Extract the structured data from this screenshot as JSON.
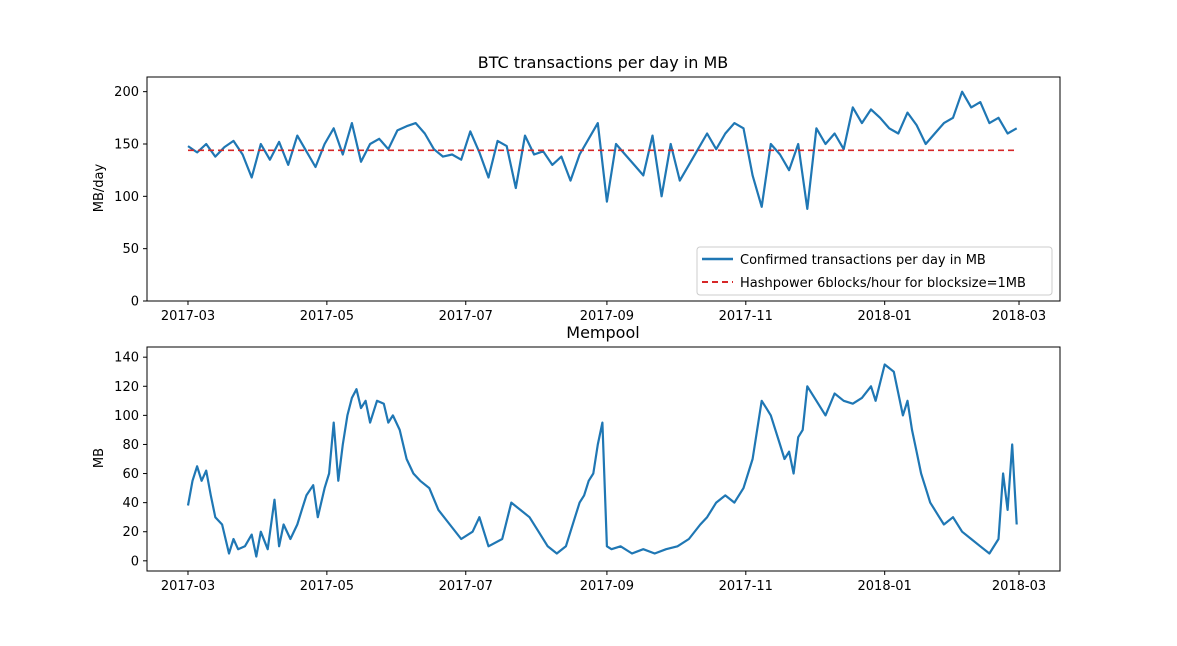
{
  "chart_data": [
    {
      "type": "line",
      "title": "BTC transactions per day in MB",
      "xlabel": "",
      "ylabel": "MB/day",
      "ylim": [
        0,
        214
      ],
      "x_ticks": [
        "2017-03",
        "2017-05",
        "2017-07",
        "2017-09",
        "2017-11",
        "2018-01",
        "2018-03"
      ],
      "x_tick_index": [
        0,
        61,
        122,
        184,
        245,
        306,
        365
      ],
      "y_ticks": [
        0,
        50,
        100,
        150,
        200
      ],
      "x_range": [
        -18,
        383
      ],
      "legend_position": "lower-right",
      "series": [
        {
          "name": "Confirmed transactions per day in MB",
          "color": "#1f77b4",
          "style": "solid",
          "x": [
            0,
            4,
            8,
            12,
            16,
            20,
            24,
            28,
            32,
            36,
            40,
            44,
            48,
            52,
            56,
            60,
            64,
            68,
            72,
            76,
            80,
            84,
            88,
            92,
            96,
            100,
            104,
            108,
            112,
            116,
            120,
            124,
            128,
            132,
            136,
            140,
            144,
            148,
            152,
            156,
            160,
            164,
            168,
            172,
            176,
            180,
            184,
            188,
            192,
            196,
            200,
            204,
            208,
            212,
            216,
            220,
            224,
            228,
            232,
            236,
            240,
            244,
            248,
            252,
            256,
            260,
            264,
            268,
            272,
            276,
            280,
            284,
            288,
            292,
            296,
            300,
            304,
            308,
            312,
            316,
            320,
            324,
            328,
            332,
            336,
            340,
            344,
            348,
            352,
            356,
            360,
            364
          ],
          "y": [
            148,
            142,
            150,
            138,
            147,
            153,
            140,
            118,
            150,
            135,
            152,
            130,
            158,
            143,
            128,
            150,
            165,
            140,
            170,
            133,
            150,
            155,
            145,
            163,
            167,
            170,
            160,
            145,
            138,
            140,
            135,
            162,
            142,
            118,
            153,
            148,
            108,
            158,
            140,
            143,
            130,
            138,
            115,
            140,
            155,
            170,
            95,
            150,
            140,
            130,
            120,
            158,
            100,
            150,
            115,
            130,
            145,
            160,
            145,
            160,
            170,
            165,
            120,
            90,
            150,
            140,
            125,
            150,
            88,
            165,
            150,
            160,
            145,
            185,
            170,
            183,
            175,
            165,
            160,
            180,
            168,
            150,
            160,
            170,
            175,
            200,
            185,
            190,
            170,
            175,
            160,
            165
          ]
        },
        {
          "name": "Hashpower 6blocks/hour for blocksize=1MB",
          "color": "#d62728",
          "style": "dashed",
          "x": [
            0,
            364
          ],
          "y": [
            144,
            144
          ]
        }
      ]
    },
    {
      "type": "line",
      "title": "Mempool",
      "xlabel": "",
      "ylabel": "MB",
      "ylim": [
        -7,
        147
      ],
      "x_ticks": [
        "2017-03",
        "2017-05",
        "2017-07",
        "2017-09",
        "2017-11",
        "2018-01",
        "2018-03"
      ],
      "x_tick_index": [
        0,
        61,
        122,
        184,
        245,
        306,
        365
      ],
      "y_ticks": [
        0,
        20,
        40,
        60,
        80,
        100,
        120,
        140
      ],
      "x_range": [
        -18,
        383
      ],
      "series": [
        {
          "name": "Mempool",
          "color": "#1f77b4",
          "style": "solid",
          "x": [
            0,
            2,
            4,
            6,
            8,
            10,
            12,
            15,
            18,
            20,
            22,
            25,
            28,
            30,
            32,
            35,
            38,
            40,
            42,
            45,
            48,
            50,
            52,
            55,
            57,
            60,
            62,
            64,
            66,
            68,
            70,
            72,
            74,
            76,
            78,
            80,
            83,
            86,
            88,
            90,
            93,
            96,
            99,
            102,
            106,
            110,
            115,
            120,
            125,
            128,
            132,
            138,
            142,
            146,
            150,
            154,
            158,
            162,
            166,
            170,
            172,
            174,
            176,
            178,
            180,
            182,
            184,
            186,
            190,
            195,
            200,
            205,
            210,
            215,
            220,
            225,
            228,
            232,
            236,
            240,
            244,
            248,
            252,
            254,
            256,
            258,
            260,
            262,
            264,
            266,
            268,
            270,
            272,
            276,
            280,
            284,
            288,
            292,
            296,
            300,
            302,
            306,
            310,
            314,
            316,
            318,
            320,
            322,
            324,
            326,
            328,
            330,
            332,
            336,
            340,
            344,
            348,
            352,
            356,
            358,
            360,
            362,
            364
          ],
          "y": [
            38,
            55,
            65,
            55,
            62,
            45,
            30,
            25,
            5,
            15,
            8,
            10,
            18,
            3,
            20,
            8,
            42,
            10,
            25,
            15,
            25,
            35,
            45,
            52,
            30,
            50,
            60,
            95,
            55,
            80,
            100,
            112,
            118,
            105,
            110,
            95,
            110,
            108,
            95,
            100,
            90,
            70,
            60,
            55,
            50,
            35,
            25,
            15,
            20,
            30,
            10,
            15,
            40,
            35,
            30,
            20,
            10,
            5,
            10,
            30,
            40,
            45,
            55,
            60,
            80,
            95,
            10,
            8,
            10,
            5,
            8,
            5,
            8,
            10,
            15,
            25,
            30,
            40,
            45,
            40,
            50,
            70,
            110,
            105,
            100,
            90,
            80,
            70,
            75,
            60,
            85,
            90,
            120,
            110,
            100,
            115,
            110,
            108,
            112,
            120,
            110,
            135,
            130,
            100,
            110,
            90,
            75,
            60,
            50,
            40,
            35,
            30,
            25,
            30,
            20,
            15,
            10,
            5,
            15,
            60,
            35,
            80,
            25
          ]
        }
      ]
    }
  ]
}
